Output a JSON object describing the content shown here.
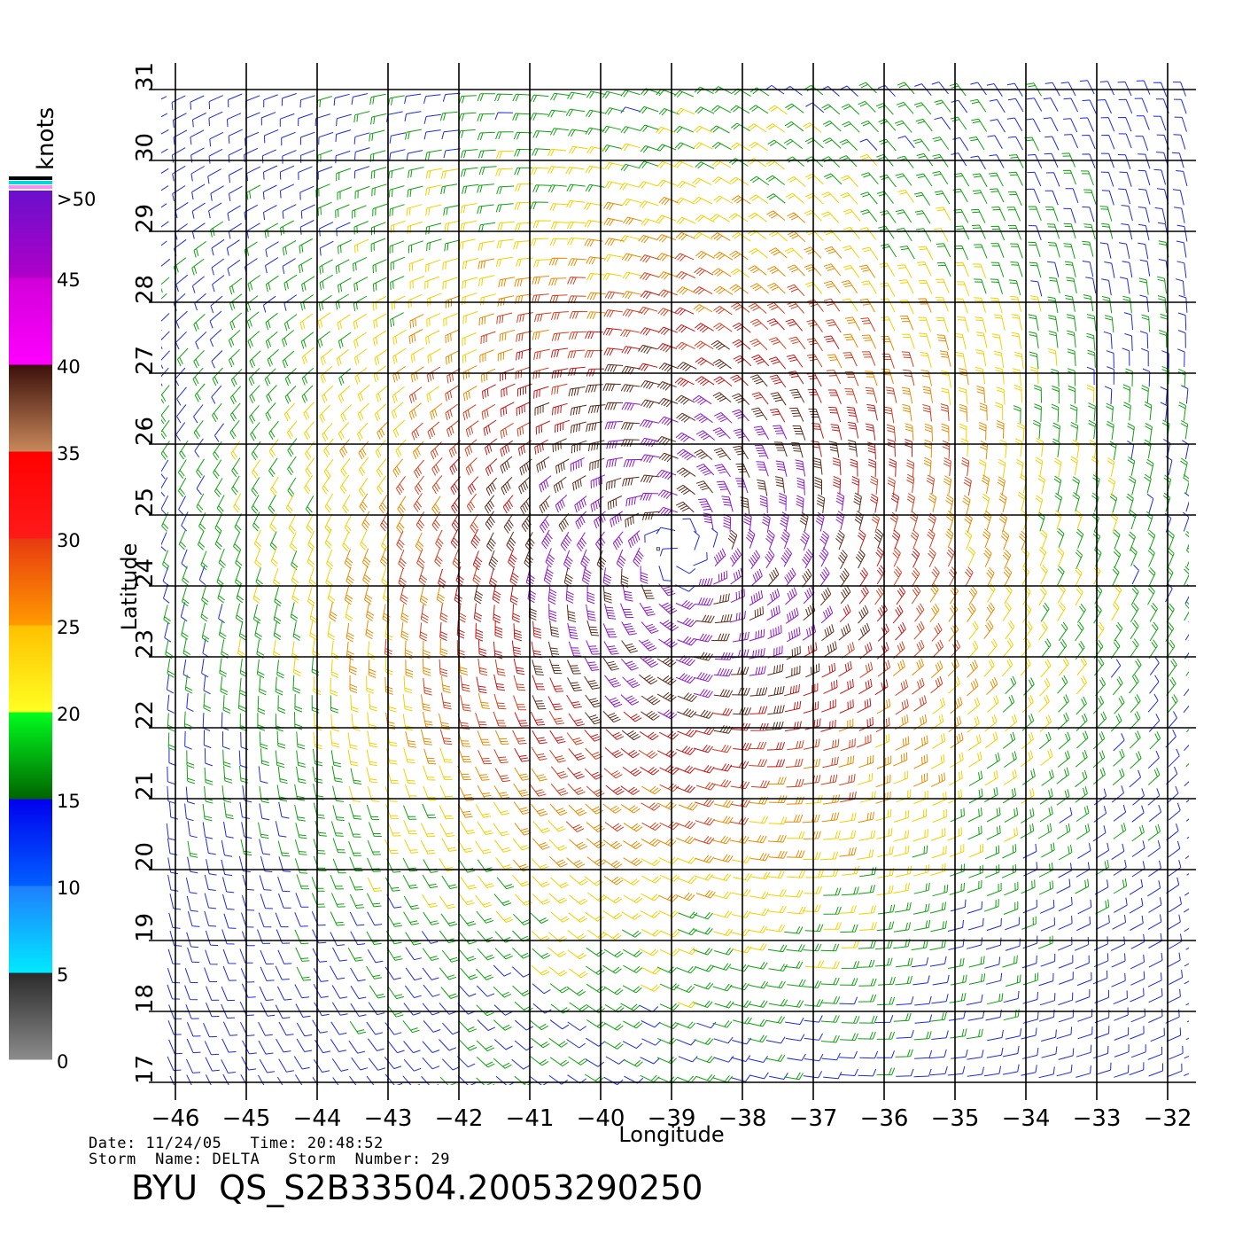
{
  "map": {
    "axis_x_label": "Longitude",
    "axis_y_label": "Latitude",
    "lon_ticks": [
      "−46",
      "−45",
      "−44",
      "−43",
      "−42",
      "−41",
      "−40",
      "−39",
      "−38",
      "−37",
      "−36",
      "−35",
      "−34",
      "−33",
      "−32"
    ],
    "lat_ticks": [
      "17",
      "18",
      "19",
      "20",
      "21",
      "22",
      "23",
      "24",
      "25",
      "26",
      "27",
      "28",
      "29",
      "30",
      "31"
    ],
    "lon_range": [
      -46,
      -32
    ],
    "lat_range": [
      17,
      31
    ],
    "storm_center": {
      "lon": -38.9,
      "lat": 24.5
    },
    "colorbar": {
      "unit_label": "knots",
      "labels": [
        "0",
        "5",
        "10",
        "15",
        "20",
        "25",
        "30",
        "35",
        "40",
        "45",
        ">50"
      ],
      "bands": [
        {
          "range": "0-5",
          "from": "#8c8c8c",
          "to": "#2a2a2a"
        },
        {
          "range": "5-10",
          "from": "#00eaff",
          "to": "#1f7dff"
        },
        {
          "range": "10-15",
          "from": "#0060ff",
          "to": "#0000ee"
        },
        {
          "range": "15-20",
          "from": "#006400",
          "to": "#00ff1e"
        },
        {
          "range": "20-25",
          "from": "#ffff22",
          "to": "#ffc000"
        },
        {
          "range": "25-30",
          "from": "#ff9a00",
          "to": "#e83a10"
        },
        {
          "range": "30-35",
          "from": "#ff1a1a",
          "to": "#ff0000"
        },
        {
          "range": "35-40",
          "from": "#c8885a",
          "to": "#3a0f0a"
        },
        {
          "range": "40-45",
          "from": "#ff00ff",
          "to": "#d000d8"
        },
        {
          "range": "45-50",
          "from": "#b000c8",
          "to": "#6a10cc"
        }
      ],
      "top_stripes": [
        "#000000",
        "#00d8d8",
        "#ff88ff"
      ]
    },
    "speed_colors": {
      "calm": "#444444",
      "blue": "#1e2bd6",
      "green": "#10a010",
      "yellow": "#f2d000",
      "orange": "#e88a00",
      "red_orange": "#d04020",
      "red": "#c01818",
      "brown": "#5a2a18",
      "purple": "#8a18c8"
    }
  },
  "footer": {
    "date_line": "Date: 11/24/05   Time: 20:48:52",
    "storm_line": "Storm  Name: DELTA   Storm  Number: 29",
    "product": "BYU  QS_S2B33504.20053290250"
  }
}
